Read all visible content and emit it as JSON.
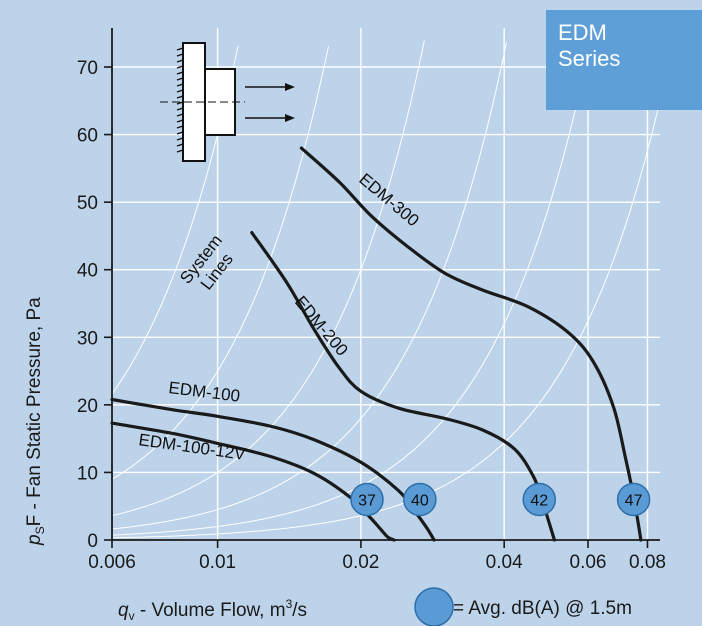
{
  "badge": {
    "line1": "EDM",
    "line2": "Series"
  },
  "legend": {
    "text": "= Avg. dB(A) @ 1.5m",
    "marker_color": "#5b9bd5"
  },
  "chart_data": {
    "type": "line",
    "xscale": "log",
    "xlim": [
      0.006,
      0.085
    ],
    "ylim": [
      0,
      70
    ],
    "x_ticks": [
      0.006,
      0.01,
      0.02,
      0.04,
      0.06,
      0.08
    ],
    "x_tick_labels": [
      "0.006",
      "0.01",
      "0.02",
      "0.04",
      "0.06",
      "0.08"
    ],
    "y_ticks": [
      0,
      10,
      20,
      30,
      40,
      50,
      60,
      70
    ],
    "y_tick_labels": [
      "0",
      "10",
      "20",
      "30",
      "40",
      "50",
      "60",
      "70"
    ],
    "xlabel": {
      "symbol": "q",
      "sub": "v",
      "text": " - Volume Flow, m",
      "sup": "3",
      "tail": "/s"
    },
    "ylabel": {
      "symbol": "p",
      "sub": "S",
      "text": "F - Fan Static Pressure, Pa"
    },
    "system_lines_label": [
      "System",
      "Lines"
    ],
    "system_lines_k": [
      600000,
      250000,
      100000,
      45000,
      20000,
      9000
    ],
    "line_color": "#1a1a1a",
    "series": [
      {
        "name": "EDM-100-12V",
        "x": [
          0.006,
          0.008,
          0.01,
          0.013,
          0.016,
          0.019,
          0.021,
          0.022,
          0.0228,
          0.0235
        ],
        "y": [
          17.3,
          15.8,
          14.3,
          12.3,
          9.8,
          6.3,
          3.2,
          1.6,
          0.4,
          0
        ],
        "db": 37,
        "db_x": 0.0206,
        "db_y": 6
      },
      {
        "name": "EDM-100",
        "x": [
          0.006,
          0.008,
          0.01,
          0.013,
          0.016,
          0.02,
          0.024,
          0.026,
          0.0275,
          0.0285
        ],
        "y": [
          20.8,
          19.3,
          18.3,
          16.8,
          14.8,
          11.5,
          7.3,
          4.2,
          1.8,
          0
        ],
        "db": 40,
        "db_x": 0.0266,
        "db_y": 6
      },
      {
        "name": "EDM-200",
        "x": [
          0.0118,
          0.014,
          0.016,
          0.018,
          0.02,
          0.024,
          0.03,
          0.036,
          0.042,
          0.046,
          0.048,
          0.0495,
          0.051
        ],
        "y": [
          45.5,
          38,
          31,
          25.5,
          22,
          19.5,
          18,
          16.3,
          13.5,
          9.5,
          6,
          3,
          0
        ],
        "db": 42,
        "db_x": 0.0474,
        "db_y": 6
      },
      {
        "name": "EDM-300",
        "x": [
          0.015,
          0.018,
          0.021,
          0.025,
          0.03,
          0.036,
          0.045,
          0.055,
          0.062,
          0.068,
          0.072,
          0.075,
          0.0775
        ],
        "y": [
          58,
          53,
          48,
          43.5,
          39.5,
          37,
          34.5,
          30.5,
          26,
          19.5,
          12,
          6,
          0
        ],
        "db": 47,
        "db_x": 0.0748,
        "db_y": 6
      }
    ]
  }
}
